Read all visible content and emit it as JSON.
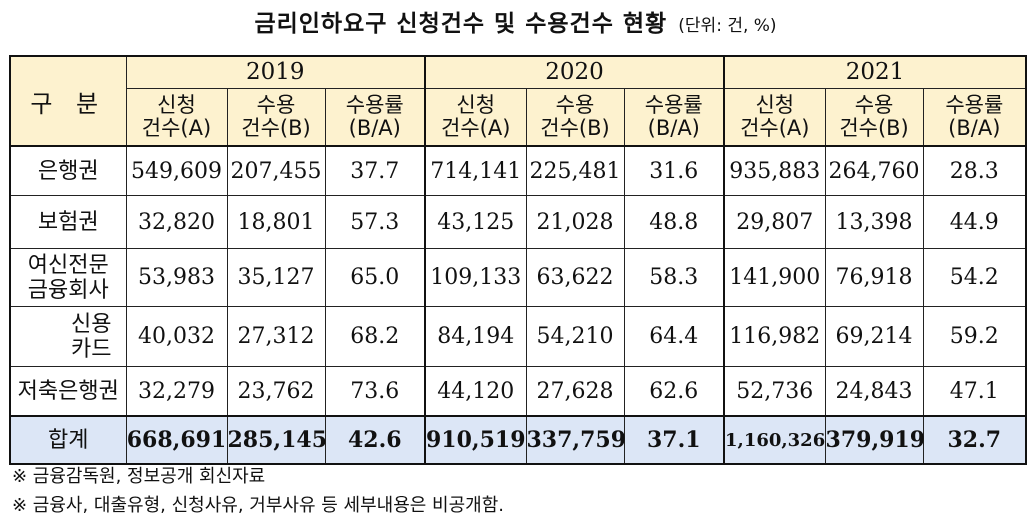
{
  "title": {
    "main": "금리인하요구 신청건수 및 수용건수 현황",
    "unit": "(단위: 건, %)"
  },
  "header": {
    "gubun": "구 분",
    "years": [
      "2019",
      "2020",
      "2021"
    ],
    "sub": [
      {
        "l1": "신청",
        "l2": "건수(A)"
      },
      {
        "l1": "수용",
        "l2": "건수(B)"
      },
      {
        "l1": "수용률",
        "l2": "(B/A)"
      }
    ]
  },
  "rows": [
    {
      "l1": "은행권",
      "l2": "",
      "values": [
        "549,609",
        "207,455",
        "37.7",
        "714,141",
        "225,481",
        "31.6",
        "935,883",
        "264,760",
        "28.3"
      ]
    },
    {
      "l1": "보험권",
      "l2": "",
      "values": [
        "32,820",
        "18,801",
        "57.3",
        "43,125",
        "21,028",
        "48.8",
        "29,807",
        "13,398",
        "44.9"
      ]
    },
    {
      "l1": "여신전문",
      "l2": "금융회사",
      "values": [
        "53,983",
        "35,127",
        "65.0",
        "109,133",
        "63,622",
        "58.3",
        "141,900",
        "76,918",
        "54.2"
      ]
    },
    {
      "l1": "신용",
      "l2": "카드",
      "values": [
        "40,032",
        "27,312",
        "68.2",
        "84,194",
        "54,210",
        "64.4",
        "116,982",
        "69,214",
        "59.2"
      ]
    },
    {
      "l1": "저축은행권",
      "l2": "",
      "values": [
        "32,279",
        "23,762",
        "73.6",
        "44,120",
        "27,628",
        "62.6",
        "52,736",
        "24,843",
        "47.1"
      ]
    }
  ],
  "total": {
    "label": "합계",
    "values": [
      "668,691",
      "285,145",
      "42.6",
      "910,519",
      "337,759",
      "37.1",
      "1,160,326",
      "379,919",
      "32.7"
    ]
  },
  "notes": [
    "※ 금융감독원, 정보공개 회신자료",
    "※ 금융사, 대출유형, 신청사유, 거부사유 등 세부내용은 비공개함."
  ]
}
